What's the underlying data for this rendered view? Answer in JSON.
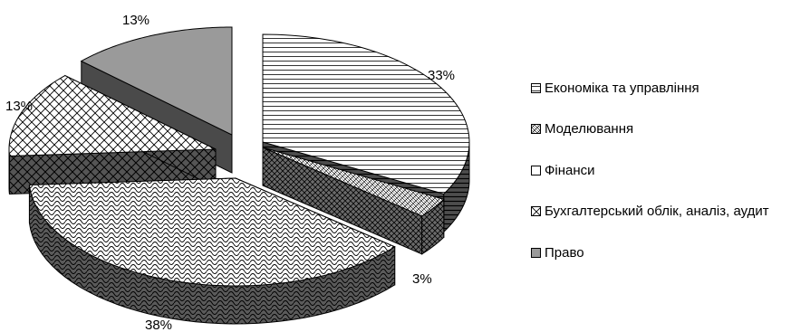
{
  "chart_data": {
    "type": "pie",
    "title": "",
    "categories": [
      "Економіка та управління",
      "Моделювання",
      "Фінанси",
      "Бухгалтерський облік, аналіз, аудит",
      "Право"
    ],
    "values": [
      33,
      3,
      38,
      13,
      13
    ],
    "labels": [
      "33%",
      "3%",
      "38%",
      "13%",
      "13%"
    ],
    "legend_position": "right",
    "exploded": true,
    "three_d": true
  },
  "colors": {
    "side_hlines": "#4d4d4d",
    "modeling_side": "#6a6a6a",
    "finance_side": "#5a5a5a",
    "accounting_side": "#555555",
    "law_top": "#9a9a9a",
    "law_side": "#4a4a4a"
  }
}
